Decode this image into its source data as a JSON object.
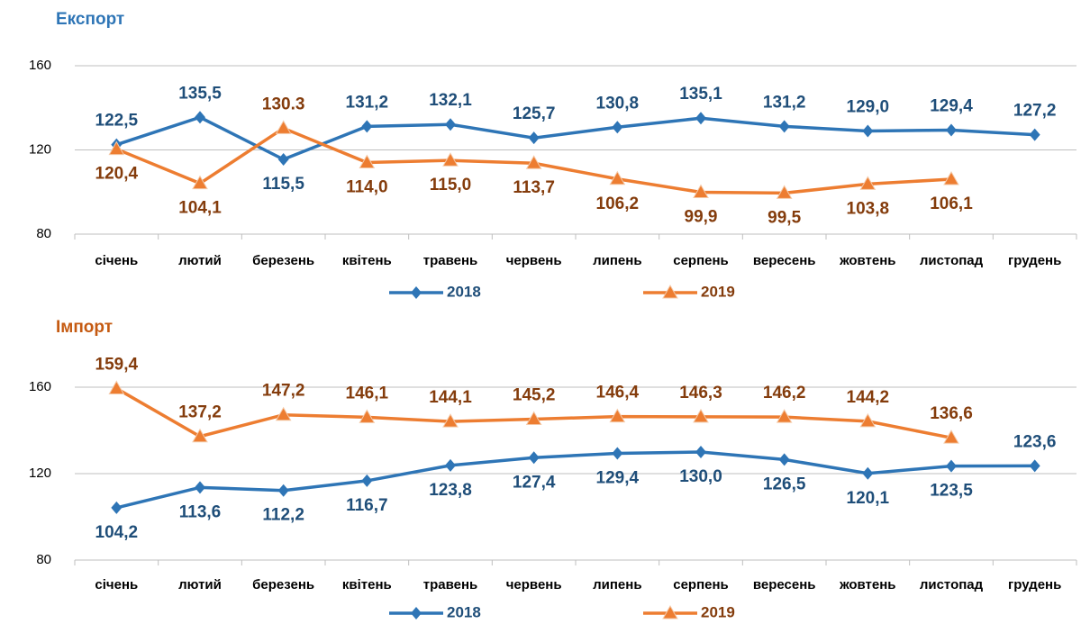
{
  "chart_data": [
    {
      "type": "line",
      "title": "Експорт",
      "categories": [
        "січень",
        "лютий",
        "березень",
        "квітень",
        "травень",
        "червень",
        "липень",
        "серпень",
        "вересень",
        "жовтень",
        "листопад",
        "грудень"
      ],
      "ylim": [
        80,
        160
      ],
      "yticks": [
        80,
        120,
        160
      ],
      "grid": true,
      "series": [
        {
          "name": "2018",
          "color": "#2e75b6",
          "marker": "diamond",
          "values": [
            122.5,
            135.5,
            115.5,
            131.2,
            132.1,
            125.7,
            130.8,
            135.1,
            131.2,
            129.0,
            129.4,
            127.2
          ],
          "value_labels": [
            "122,5",
            "135,5",
            "115,5",
            "131,2",
            "132,1",
            "125,7",
            "130,8",
            "135,1",
            "131,2",
            "129,0",
            "129,4",
            "127,2"
          ]
        },
        {
          "name": "2019",
          "color": "#ed7d31",
          "marker": "triangle",
          "values": [
            120.4,
            104.1,
            130.3,
            114.0,
            115.0,
            113.7,
            106.2,
            99.9,
            99.5,
            103.8,
            106.1,
            null
          ],
          "value_labels": [
            "120,4",
            "104,1",
            "130.3",
            "114,0",
            "115,0",
            "113,7",
            "106,2",
            "99,9",
            "99,5",
            "103,8",
            "106,1",
            null
          ]
        }
      ]
    },
    {
      "type": "line",
      "title": "Імпорт",
      "categories": [
        "січень",
        "лютий",
        "березень",
        "квітень",
        "травень",
        "червень",
        "липень",
        "серпень",
        "вересень",
        "жовтень",
        "листопад",
        "грудень"
      ],
      "ylim": [
        80,
        160
      ],
      "yticks": [
        80,
        120,
        160
      ],
      "grid": true,
      "series": [
        {
          "name": "2018",
          "color": "#2e75b6",
          "marker": "diamond",
          "values": [
            104.2,
            113.6,
            112.2,
            116.7,
            123.8,
            127.4,
            129.4,
            130.0,
            126.5,
            120.1,
            123.5,
            123.6
          ],
          "value_labels": [
            "104,2",
            "113,6",
            "112,2",
            "116,7",
            "123,8",
            "127,4",
            "129,4",
            "130,0",
            "126,5",
            "120,1",
            "123,5",
            "123,6"
          ]
        },
        {
          "name": "2019",
          "color": "#ed7d31",
          "marker": "triangle",
          "values": [
            159.4,
            137.2,
            147.2,
            146.1,
            144.1,
            145.2,
            146.4,
            146.3,
            146.2,
            144.2,
            136.6,
            null
          ],
          "value_labels": [
            "159,4",
            "137,2",
            "147,2",
            "146,1",
            "144,1",
            "145,2",
            "146,4",
            "146,3",
            "146,2",
            "144,2",
            "136,6",
            null
          ]
        }
      ]
    }
  ]
}
